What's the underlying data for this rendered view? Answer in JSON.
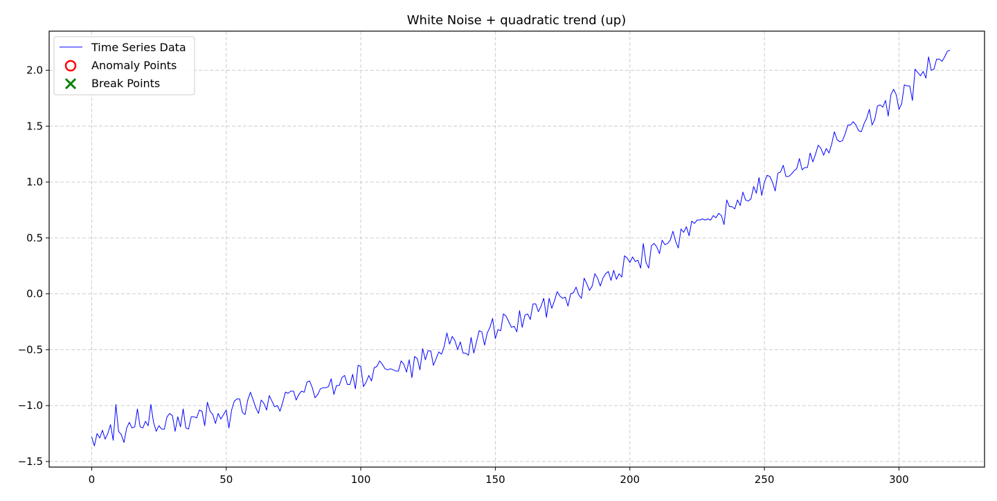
{
  "chart_data": {
    "type": "line",
    "title": "White Noise + quadratic trend (up)",
    "xlabel": "",
    "ylabel": "",
    "xlim": [
      -15.8,
      331.8
    ],
    "ylim": [
      -1.55,
      2.35
    ],
    "xticks": [
      0,
      50,
      100,
      150,
      200,
      250,
      300
    ],
    "xtick_labels": [
      "0",
      "50",
      "100",
      "150",
      "200",
      "250",
      "300"
    ],
    "yticks": [
      -1.5,
      -1.0,
      -0.5,
      0.0,
      0.5,
      1.0,
      1.5,
      2.0
    ],
    "ytick_labels": [
      "−1.5",
      "−1.0",
      "−0.5",
      "0.0",
      "0.5",
      "1.0",
      "1.5",
      "2.0"
    ],
    "grid": true,
    "legend_position": "top-left",
    "legend": [
      "Time Series Data",
      "Anomaly Points",
      "Break Points"
    ],
    "colors": {
      "series": "#0000ff",
      "anomaly": "#ff0000",
      "break": "#008000",
      "grid": "#cccccc",
      "axes": "#000000"
    },
    "series": [
      {
        "name": "Time Series Data",
        "x_start": 0,
        "x_step": 1,
        "values": [
          -1.28,
          -1.36,
          -1.25,
          -1.29,
          -1.22,
          -1.3,
          -1.25,
          -1.17,
          -1.31,
          -0.99,
          -1.23,
          -1.26,
          -1.33,
          -1.2,
          -1.15,
          -1.2,
          -1.19,
          -1.03,
          -1.19,
          -1.2,
          -1.14,
          -1.18,
          -0.99,
          -1.15,
          -1.23,
          -1.18,
          -1.21,
          -1.21,
          -1.1,
          -1.07,
          -1.09,
          -1.23,
          -1.1,
          -1.19,
          -1.03,
          -1.2,
          -1.21,
          -1.1,
          -1.1,
          -1.11,
          -1.04,
          -1.05,
          -1.18,
          -0.97,
          -1.05,
          -1.08,
          -1.16,
          -1.07,
          -1.12,
          -1.08,
          -1.04,
          -1.2,
          -1.04,
          -0.96,
          -0.94,
          -0.94,
          -1.06,
          -1.08,
          -0.95,
          -0.88,
          -0.95,
          -1.02,
          -1.07,
          -0.95,
          -0.98,
          -1.04,
          -0.91,
          -0.96,
          -1.01,
          -1.0,
          -1.05,
          -0.97,
          -0.88,
          -0.89,
          -0.87,
          -0.87,
          -0.95,
          -0.9,
          -0.87,
          -0.88,
          -0.79,
          -0.78,
          -0.84,
          -0.93,
          -0.9,
          -0.85,
          -0.84,
          -0.84,
          -0.83,
          -0.76,
          -0.9,
          -0.82,
          -0.82,
          -0.75,
          -0.73,
          -0.81,
          -0.81,
          -0.72,
          -0.85,
          -0.64,
          -0.65,
          -0.83,
          -0.79,
          -0.73,
          -0.78,
          -0.66,
          -0.65,
          -0.6,
          -0.63,
          -0.67,
          -0.68,
          -0.67,
          -0.68,
          -0.69,
          -0.69,
          -0.6,
          -0.63,
          -0.7,
          -0.59,
          -0.75,
          -0.56,
          -0.58,
          -0.68,
          -0.49,
          -0.59,
          -0.51,
          -0.51,
          -0.64,
          -0.58,
          -0.52,
          -0.54,
          -0.47,
          -0.35,
          -0.45,
          -0.38,
          -0.42,
          -0.5,
          -0.43,
          -0.53,
          -0.53,
          -0.55,
          -0.39,
          -0.53,
          -0.43,
          -0.33,
          -0.34,
          -0.46,
          -0.35,
          -0.3,
          -0.22,
          -0.4,
          -0.32,
          -0.33,
          -0.18,
          -0.2,
          -0.25,
          -0.3,
          -0.29,
          -0.34,
          -0.15,
          -0.3,
          -0.19,
          -0.18,
          -0.23,
          -0.09,
          -0.09,
          -0.16,
          -0.11,
          -0.04,
          -0.21,
          -0.04,
          -0.13,
          -0.06,
          0.02,
          -0.02,
          -0.04,
          -0.03,
          -0.11,
          0.0,
          0.01,
          0.06,
          -0.01,
          -0.04,
          0.14,
          0.09,
          0.03,
          0.07,
          0.18,
          0.14,
          0.07,
          0.14,
          0.18,
          0.2,
          0.12,
          0.21,
          0.13,
          0.18,
          0.15,
          0.34,
          0.32,
          0.28,
          0.33,
          0.29,
          0.3,
          0.23,
          0.45,
          0.28,
          0.23,
          0.43,
          0.45,
          0.42,
          0.36,
          0.48,
          0.44,
          0.45,
          0.48,
          0.56,
          0.47,
          0.41,
          0.58,
          0.55,
          0.6,
          0.52,
          0.65,
          0.63,
          0.66,
          0.66,
          0.67,
          0.66,
          0.67,
          0.66,
          0.7,
          0.68,
          0.72,
          0.7,
          0.62,
          0.84,
          0.78,
          0.78,
          0.76,
          0.84,
          0.79,
          0.91,
          0.84,
          0.83,
          0.85,
          0.96,
          0.9,
          1.04,
          0.88,
          1.0,
          1.06,
          1.05,
          1.0,
          0.92,
          1.08,
          1.09,
          1.15,
          1.05,
          1.05,
          1.07,
          1.1,
          1.12,
          1.21,
          1.11,
          1.13,
          1.13,
          1.26,
          1.18,
          1.25,
          1.33,
          1.3,
          1.24,
          1.3,
          1.26,
          1.34,
          1.45,
          1.38,
          1.36,
          1.37,
          1.43,
          1.51,
          1.51,
          1.54,
          1.51,
          1.46,
          1.45,
          1.52,
          1.57,
          1.65,
          1.51,
          1.56,
          1.68,
          1.69,
          1.67,
          1.73,
          1.59,
          1.78,
          1.83,
          1.78,
          1.65,
          1.7,
          1.87,
          1.86,
          1.86,
          1.73,
          2.01,
          1.98,
          1.95,
          1.99,
          1.93,
          2.12,
          2.0,
          2.01,
          2.1,
          2.1,
          2.08,
          2.12,
          2.17,
          2.18
        ]
      }
    ],
    "anomaly_points": [],
    "break_points": []
  }
}
